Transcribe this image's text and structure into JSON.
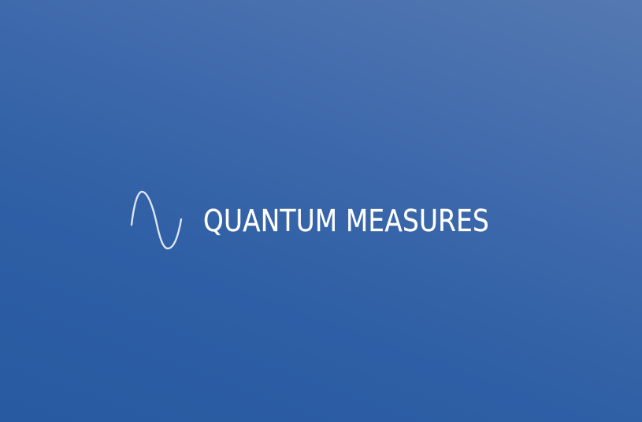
{
  "brand": {
    "name": "QUANTUM MEASURES",
    "icon": "sine-wave-icon"
  },
  "colors": {
    "background_start": "#5579b1",
    "background_end": "#275aa1",
    "text": "#ffffff",
    "icon_stroke": "#dbe4f1"
  }
}
